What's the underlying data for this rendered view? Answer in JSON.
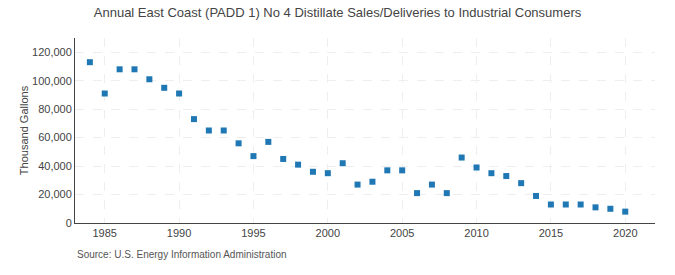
{
  "chart_data": {
    "type": "scatter",
    "title": "Annual East Coast (PADD 1) No 4 Distillate Sales/Deliveries to Industrial Consumers",
    "ylabel": "Thousand Gallons",
    "source": "Source: U.S. Energy Information Administration",
    "x": [
      1984,
      1985,
      1986,
      1987,
      1988,
      1989,
      1990,
      1991,
      1992,
      1993,
      1994,
      1995,
      1996,
      1997,
      1998,
      1999,
      2000,
      2001,
      2002,
      2003,
      2004,
      2005,
      2006,
      2007,
      2008,
      2009,
      2010,
      2011,
      2012,
      2013,
      2014,
      2015,
      2016,
      2017,
      2018,
      2019,
      2020
    ],
    "values": [
      113000,
      91000,
      108000,
      108000,
      101000,
      95000,
      91000,
      73000,
      65000,
      65000,
      56000,
      47000,
      57000,
      45000,
      41000,
      36000,
      35000,
      42000,
      27000,
      29000,
      37000,
      37000,
      21000,
      27000,
      21000,
      46000,
      39000,
      35000,
      33000,
      28000,
      19000,
      13000,
      13000,
      13000,
      11000,
      10000,
      8000
    ],
    "marker": "square",
    "xlim": [
      1983,
      2022
    ],
    "ylim": [
      0,
      130000
    ],
    "xticks": [
      1985,
      1990,
      1995,
      2000,
      2005,
      2010,
      2015,
      2020
    ],
    "yticks": [
      0,
      {
        "value": 20000,
        "label": "20,000"
      },
      {
        "value": 40000,
        "label": "40,000"
      },
      {
        "value": 60000,
        "label": "60,000"
      },
      {
        "value": 80000,
        "label": "80,000"
      },
      {
        "value": 100000,
        "label": "100,000"
      },
      {
        "value": 120000,
        "label": "120,000"
      }
    ],
    "grid": true
  }
}
